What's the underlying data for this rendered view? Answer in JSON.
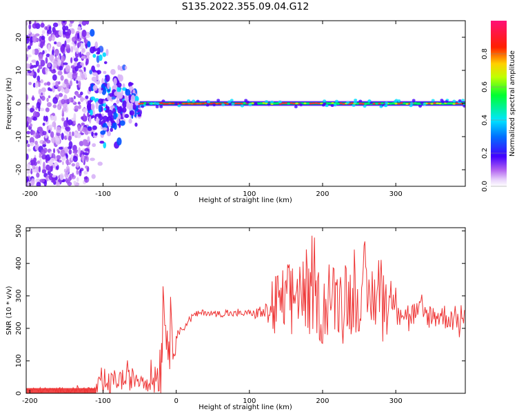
{
  "title": "S135.2022.355.09.04.G12",
  "chart_data": [
    {
      "type": "heatmap",
      "xlabel": "Height of straight line (km)",
      "ylabel": "Frequency (Hz)",
      "xlim": [
        -205,
        395
      ],
      "ylim": [
        -25,
        25
      ],
      "x_ticks": [
        -200,
        -100,
        0,
        100,
        200,
        300
      ],
      "y_ticks": [
        -20,
        -10,
        0,
        10,
        20
      ],
      "grid": false,
      "colorbar": {
        "label": "Normalized spectral amplitude",
        "range": [
          0,
          1
        ],
        "ticks": [
          "0.0",
          "0.2",
          "0.4",
          "0.6",
          "0.8"
        ],
        "colormap": "gist_rainbow_r (magenta-blue-cyan-green-yellow-red-pink)"
      },
      "features": {
        "noise_region_x": [
          -205,
          -120
        ],
        "transition_region_x": [
          -120,
          -50
        ],
        "carrier_line_x": [
          -50,
          395
        ],
        "carrier_freq_hz": 0
      }
    },
    {
      "type": "line",
      "xlabel": "Height of straight line (km)",
      "ylabel": "SNR (10 * v/v)",
      "xlim": [
        -205,
        395
      ],
      "ylim": [
        0,
        510
      ],
      "x_ticks": [
        -200,
        -100,
        0,
        100,
        200,
        300
      ],
      "y_ticks": [
        0,
        100,
        200,
        300,
        400,
        500
      ],
      "line_color": "#ee3333",
      "series": [
        {
          "name": "",
          "x": [
            -205,
            -150,
            -110,
            -100,
            -90,
            -80,
            -70,
            -60,
            -50,
            -40,
            -30,
            -20,
            -18,
            -10,
            0,
            10,
            20,
            30,
            40,
            50,
            60,
            70,
            80,
            90,
            100,
            110,
            120,
            130,
            140,
            150,
            160,
            170,
            180,
            190,
            200,
            210,
            220,
            230,
            240,
            250,
            260,
            270,
            280,
            290,
            300,
            310,
            320,
            330,
            340,
            350,
            360,
            370,
            380,
            395
          ],
          "y": [
            10,
            10,
            12,
            18,
            30,
            45,
            40,
            45,
            50,
            40,
            45,
            100,
            290,
            150,
            185,
            200,
            235,
            245,
            250,
            245,
            245,
            245,
            245,
            245,
            248,
            245,
            250,
            255,
            270,
            290,
            300,
            330,
            280,
            300,
            250,
            300,
            280,
            320,
            280,
            300,
            280,
            300,
            320,
            280,
            290,
            250,
            240,
            250,
            240,
            240,
            240,
            235,
            230,
            230
          ]
        }
      ]
    }
  ]
}
